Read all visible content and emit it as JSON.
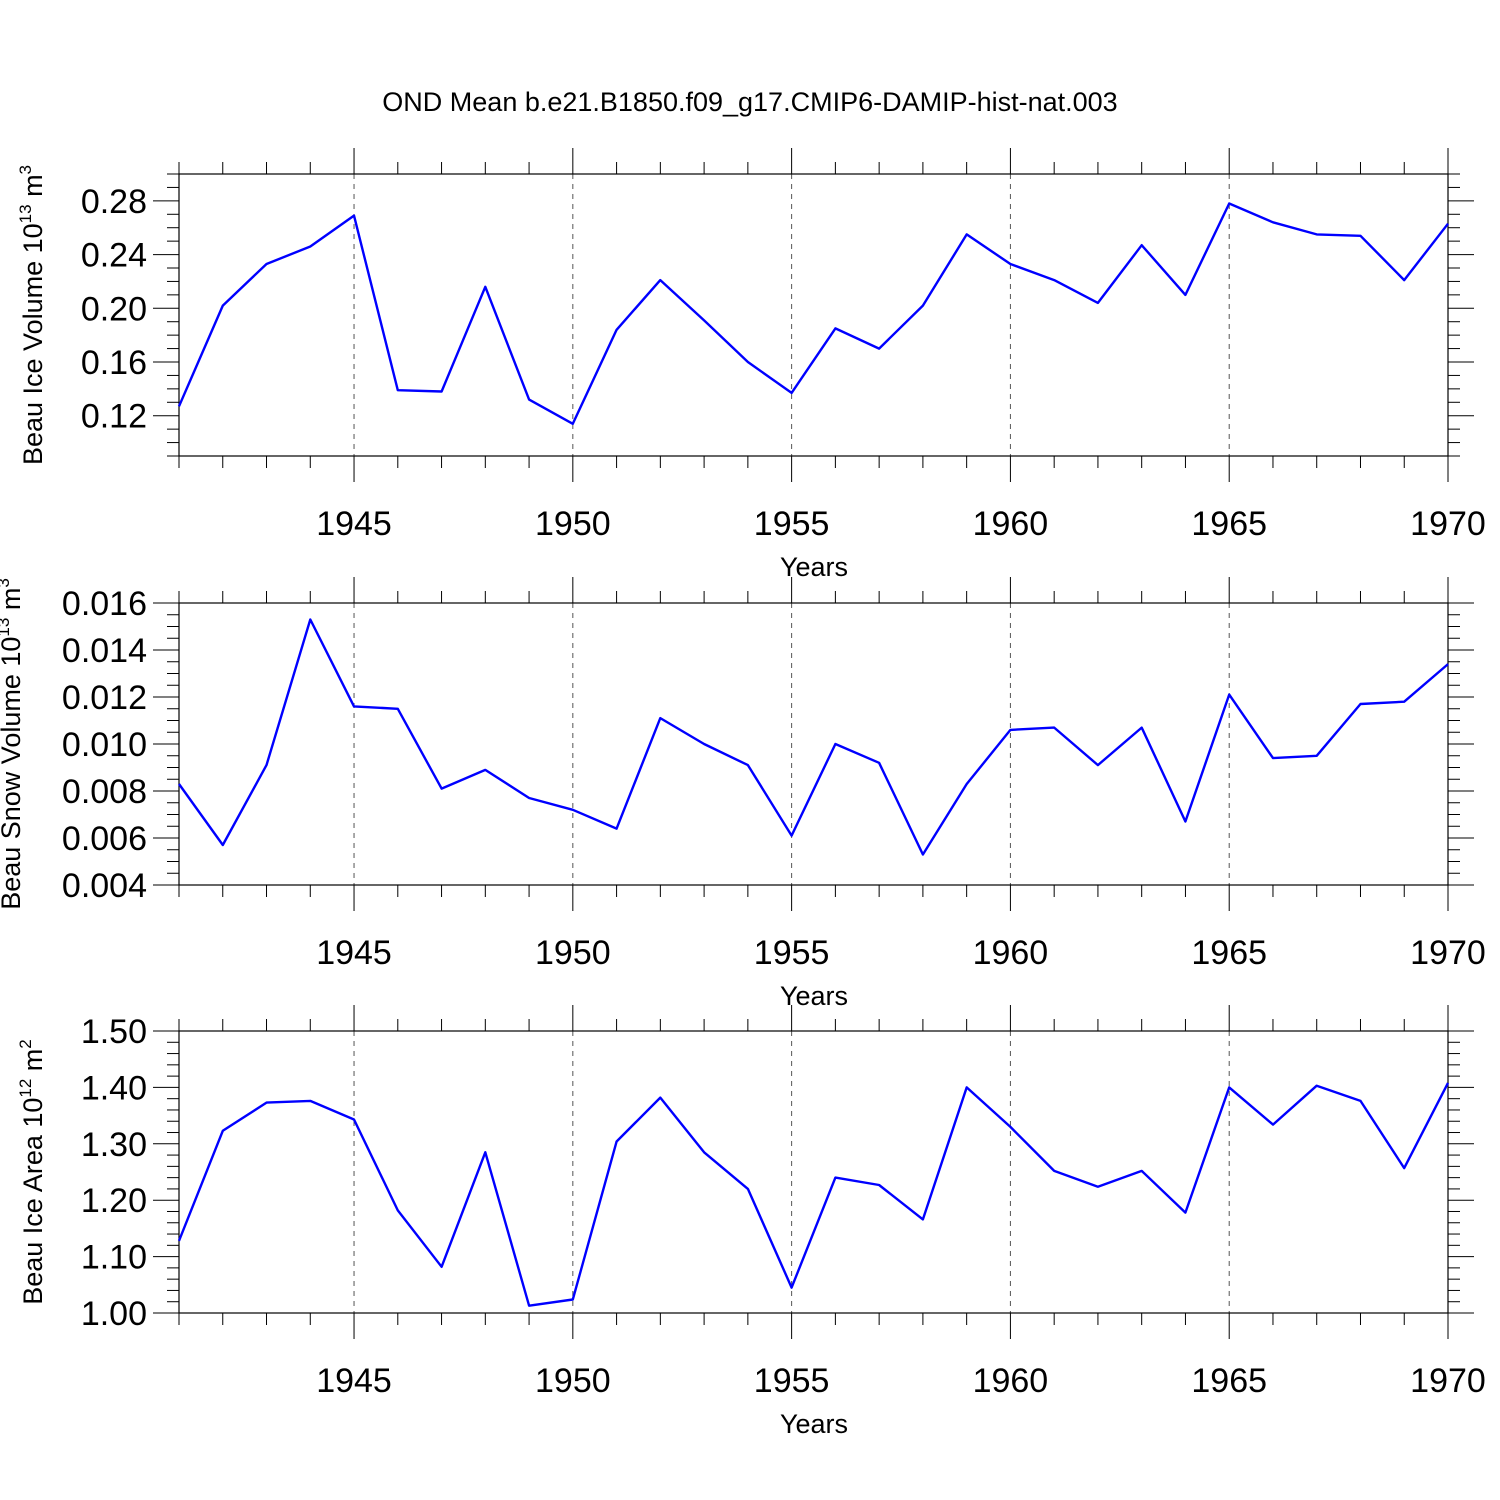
{
  "title": "OND Mean b.e21.B1850.f09_g17.CMIP6-DAMIP-hist-nat.003",
  "colors": {
    "series": "#0000ff",
    "axis": "#000000",
    "grid": "#555555"
  },
  "chart_data": [
    {
      "type": "line",
      "ylabel": {
        "text": "Beau Ice Volume 10",
        "sup": "13",
        "unit": " m",
        "unit_sup": "3"
      },
      "xlabel": "Years",
      "xlim": [
        1941,
        1970
      ],
      "ylim": [
        0.09,
        0.3
      ],
      "yticks": [
        0.12,
        0.16,
        0.2,
        0.24,
        0.28
      ],
      "ytick_labels": [
        "0.12",
        "0.16",
        "0.20",
        "0.24",
        "0.28"
      ],
      "yminor_step": 0.01,
      "xticks": [
        1945,
        1950,
        1955,
        1960,
        1965,
        1970
      ],
      "xtick_labels": [
        "1945",
        "1950",
        "1955",
        "1960",
        "1965",
        "1970"
      ],
      "x": [
        1941,
        1942,
        1943,
        1944,
        1945,
        1946,
        1947,
        1948,
        1949,
        1950,
        1951,
        1952,
        1953,
        1954,
        1955,
        1956,
        1957,
        1958,
        1959,
        1960,
        1961,
        1962,
        1963,
        1964,
        1965,
        1966,
        1967,
        1968,
        1969,
        1970
      ],
      "values": [
        0.127,
        0.202,
        0.233,
        0.246,
        0.269,
        0.139,
        0.138,
        0.216,
        0.132,
        0.114,
        0.184,
        0.221,
        0.191,
        0.16,
        0.137,
        0.185,
        0.17,
        0.202,
        0.255,
        0.233,
        0.221,
        0.204,
        0.247,
        0.21,
        0.278,
        0.264,
        0.255,
        0.254,
        0.221,
        0.263
      ]
    },
    {
      "type": "line",
      "ylabel": {
        "text": "Beau Snow Volume 10",
        "sup": "13",
        "unit": " m",
        "unit_sup": "3"
      },
      "xlabel": "Years",
      "xlim": [
        1941,
        1970
      ],
      "ylim": [
        0.004,
        0.016
      ],
      "yticks": [
        0.004,
        0.006,
        0.008,
        0.01,
        0.012,
        0.014,
        0.016
      ],
      "ytick_labels": [
        "0.004",
        "0.006",
        "0.008",
        "0.010",
        "0.012",
        "0.014",
        "0.016"
      ],
      "yminor_step": 0.0005,
      "xticks": [
        1945,
        1950,
        1955,
        1960,
        1965,
        1970
      ],
      "xtick_labels": [
        "1945",
        "1950",
        "1955",
        "1960",
        "1965",
        "1970"
      ],
      "x": [
        1941,
        1942,
        1943,
        1944,
        1945,
        1946,
        1947,
        1948,
        1949,
        1950,
        1951,
        1952,
        1953,
        1954,
        1955,
        1956,
        1957,
        1958,
        1959,
        1960,
        1961,
        1962,
        1963,
        1964,
        1965,
        1966,
        1967,
        1968,
        1969,
        1970
      ],
      "values": [
        0.0083,
        0.0057,
        0.0091,
        0.0153,
        0.0116,
        0.0115,
        0.0081,
        0.0089,
        0.0077,
        0.0072,
        0.0064,
        0.0111,
        0.01,
        0.0091,
        0.0061,
        0.01,
        0.0092,
        0.0053,
        0.0083,
        0.0106,
        0.0107,
        0.0091,
        0.0107,
        0.0067,
        0.0121,
        0.0094,
        0.0095,
        0.0117,
        0.0118,
        0.0134
      ]
    },
    {
      "type": "line",
      "ylabel": {
        "text": "Beau Ice Area 10",
        "sup": "12",
        "unit": " m",
        "unit_sup": "2"
      },
      "xlabel": "Years",
      "xlim": [
        1941,
        1970
      ],
      "ylim": [
        1.0,
        1.5
      ],
      "yticks": [
        1.0,
        1.1,
        1.2,
        1.3,
        1.4,
        1.5
      ],
      "ytick_labels": [
        "1.00",
        "1.10",
        "1.20",
        "1.30",
        "1.40",
        "1.50"
      ],
      "yminor_step": 0.02,
      "xticks": [
        1945,
        1950,
        1955,
        1960,
        1965,
        1970
      ],
      "xtick_labels": [
        "1945",
        "1950",
        "1955",
        "1960",
        "1965",
        "1970"
      ],
      "x": [
        1941,
        1942,
        1943,
        1944,
        1945,
        1946,
        1947,
        1948,
        1949,
        1950,
        1951,
        1952,
        1953,
        1954,
        1955,
        1956,
        1957,
        1958,
        1959,
        1960,
        1961,
        1962,
        1963,
        1964,
        1965,
        1966,
        1967,
        1968,
        1969,
        1970
      ],
      "values": [
        1.128,
        1.323,
        1.373,
        1.376,
        1.343,
        1.182,
        1.082,
        1.285,
        1.013,
        1.024,
        1.304,
        1.382,
        1.285,
        1.22,
        1.045,
        1.24,
        1.227,
        1.166,
        1.4,
        1.33,
        1.252,
        1.224,
        1.252,
        1.178,
        1.4,
        1.334,
        1.403,
        1.376,
        1.257,
        1.408
      ]
    }
  ]
}
